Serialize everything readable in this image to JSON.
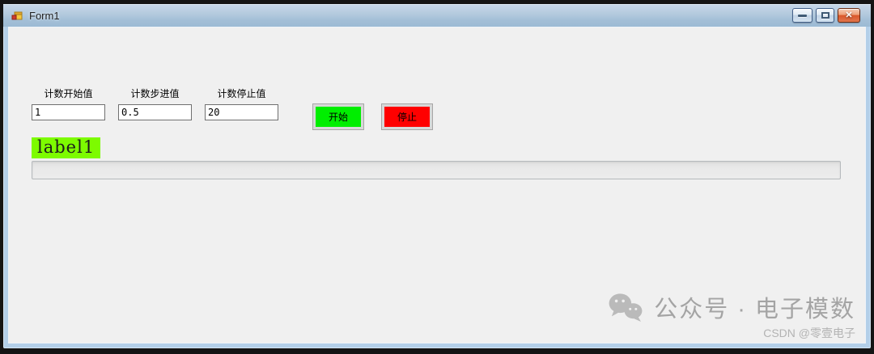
{
  "window": {
    "title": "Form1",
    "icon": "winforms-form-icon",
    "controls": {
      "minimize": {
        "name": "minimize"
      },
      "maximize": {
        "name": "maximize"
      },
      "close": {
        "name": "close",
        "glyph": "✕"
      }
    }
  },
  "form": {
    "fields": [
      {
        "label": "计数开始值",
        "value": "1"
      },
      {
        "label": "计数步进值",
        "value": "0.5"
      },
      {
        "label": "计数停止值",
        "value": "20"
      }
    ],
    "buttons": {
      "start": {
        "label": "开始",
        "color": "#00ee00"
      },
      "stop": {
        "label": "停止",
        "color": "#ff0000"
      }
    },
    "result_label": {
      "text": "label1",
      "background": "#7dfb00"
    },
    "progress": {
      "percent": 0
    }
  },
  "watermark": {
    "icon": "wechat-icon",
    "text": "公众号 · 电子模数",
    "credit": "CSDN @零壹电子"
  },
  "colors": {
    "titlebar_top": "#c6d7e8",
    "titlebar_bottom": "#9cbad4",
    "frame": "#b3cfe9",
    "client_bg": "#f0f0f0"
  }
}
